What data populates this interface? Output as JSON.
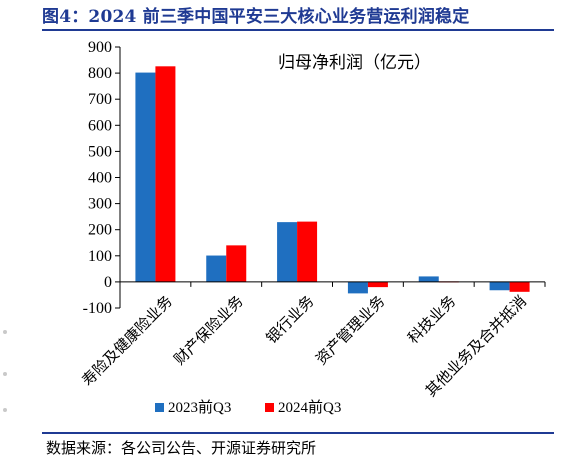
{
  "figure": {
    "title": "图4：2024 前三季中国平安三大核心业务营运利润稳定",
    "source": "数据来源：各公司公告、开源证券研究所"
  },
  "chart_data": {
    "type": "bar",
    "title": "",
    "annotation": "归母净利润（亿元）",
    "xlabel": "",
    "ylabel": "",
    "ylim": [
      -100,
      900
    ],
    "yticks": [
      -100,
      0,
      100,
      200,
      300,
      400,
      500,
      600,
      700,
      800,
      900
    ],
    "grid": false,
    "legend_position": "bottom-center",
    "categories": [
      "寿险及健康险业务",
      "财产保险业务",
      "银行业务",
      "资产管理业务",
      "科技业务",
      "其他业务及合并抵消"
    ],
    "series": [
      {
        "name": "2023前Q3",
        "color": "#1f6fc0",
        "values": [
          802,
          101,
          229,
          -44,
          21,
          -32
        ]
      },
      {
        "name": "2024前Q3",
        "color": "#ff0000",
        "values": [
          826,
          140,
          231,
          -20,
          2,
          -38
        ]
      }
    ]
  }
}
